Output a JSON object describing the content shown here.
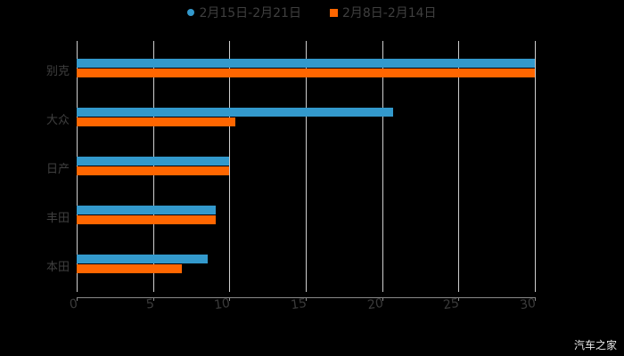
{
  "chart_data": {
    "type": "bar",
    "orientation": "horizontal",
    "title": "",
    "categories": [
      "别克",
      "大众",
      "日产",
      "丰田",
      "本田"
    ],
    "series": [
      {
        "name": "2月15日-2月21日",
        "color": "#3399cc",
        "values": [
          30,
          20.7,
          10.0,
          9.1,
          8.6
        ]
      },
      {
        "name": "2月8日-2月14日",
        "color": "#ff6600",
        "values": [
          30,
          10.4,
          10.0,
          9.1,
          6.9
        ]
      }
    ],
    "xlabel": "",
    "ylabel": "",
    "xlim": [
      0,
      30
    ],
    "xticks": [
      "0",
      "5",
      "10",
      "15",
      "20",
      "25",
      "30"
    ],
    "grid": true,
    "legend_position": "top"
  },
  "legend": {
    "items": [
      {
        "label": "2月15日-2月21日",
        "color": "#3399cc"
      },
      {
        "label": "2月8日-2月14日",
        "color": "#ff6600"
      }
    ]
  },
  "watermark": "汽车之家"
}
